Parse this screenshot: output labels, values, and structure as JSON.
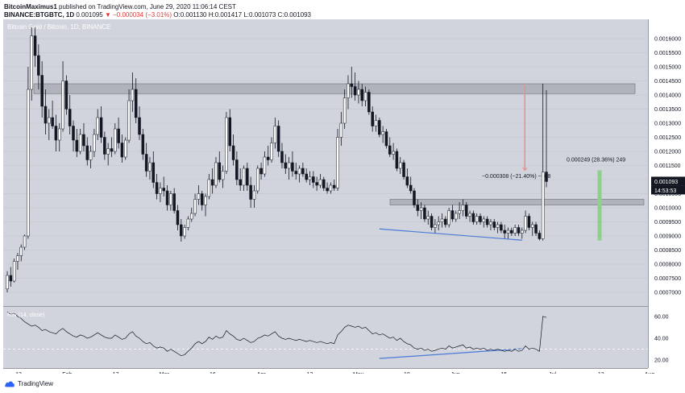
{
  "header": {
    "line1_user": "BitcoinMaximus1",
    "line1_rest": "published on TradingView.com, June 29, 2020 11:06:14 CEST",
    "line2_symbol": "BINANCE:BTGBTC, 1D",
    "line2_price": "0.001095",
    "line2_change": "▼ −0.000034 (−3.01%)",
    "line2_o": "O:0.001130",
    "line2_h": "H:0.001417",
    "line2_l": "L:0.001073",
    "line2_c": "C:0.001093"
  },
  "watermark": "Bitcoin Gold / Bitcoin, 1D, BINANCE",
  "rsi_label": "RSI (14, close)",
  "footer": {
    "brand": "TradingView"
  },
  "price_tag": {
    "value": "0.001093",
    "countdown": "14:53:53"
  },
  "colors": {
    "up": "#ffffff",
    "down": "#131722",
    "zone": "#9598a1",
    "diverge": "#4a7bd6",
    "drop": "#f28a8a",
    "rise": "#8ed18e",
    "bg": "#d1d4dc"
  },
  "chart_data": {
    "type": "candlestick",
    "x_ticks": [
      "13",
      "Feb",
      "17",
      "Mar",
      "16",
      "Apr",
      "13",
      "May",
      "18",
      "Jun",
      "15",
      "Jul",
      "13",
      "Aug"
    ],
    "y_ticks": [
      "0.0016000",
      "0.0015500",
      "0.0015000",
      "0.0014500",
      "0.0014000",
      "0.0013500",
      "0.0013000",
      "0.0012500",
      "0.0012000",
      "0.0011500",
      "0.0011000",
      "0.0010500",
      "0.0010000",
      "0.0009500",
      "0.0009000",
      "0.0008500",
      "0.0008000",
      "0.0007500",
      "0.0007000"
    ],
    "ylim": [
      0.00068,
      0.00164
    ],
    "rsi_ticks": [
      "60.00",
      "40.00",
      "20.00"
    ],
    "rsi_ylim": [
      15,
      65
    ],
    "zones": [
      {
        "name": "resistance",
        "from": 0.001405,
        "to": 0.00144
      },
      {
        "name": "support",
        "from": 0.00101,
        "to": 0.00103
      }
    ],
    "measurements": [
      {
        "label": "−0.000308 (−21.40%) −308",
        "from": 0.00144,
        "to": 0.001132
      },
      {
        "label": "0.000249 (28.36%) 249",
        "from": 0.000884,
        "to": 0.001133
      }
    ],
    "divergence": {
      "price": [
        0.000925,
        0.000885
      ],
      "rsi": [
        21.5,
        30.5
      ]
    },
    "candles": [
      [
        0.000712,
        0.000775,
        0.0007,
        0.00076
      ],
      [
        0.00076,
        0.00079,
        0.00072,
        0.00074
      ],
      [
        0.00074,
        0.00082,
        0.000735,
        0.00081
      ],
      [
        0.00081,
        0.00084,
        0.00078,
        0.00083
      ],
      [
        0.00083,
        0.00087,
        0.00081,
        0.00086
      ],
      [
        0.00086,
        0.000905,
        0.00085,
        0.0009
      ],
      [
        0.0009,
        0.0015,
        0.00089,
        0.00142
      ],
      [
        0.00142,
        0.00164,
        0.00138,
        0.00161
      ],
      [
        0.00161,
        0.00164,
        0.0015,
        0.00154
      ],
      [
        0.00154,
        0.00158,
        0.00142,
        0.00147
      ],
      [
        0.00147,
        0.00152,
        0.00132,
        0.00136
      ],
      [
        0.00136,
        0.00142,
        0.00126,
        0.0013
      ],
      [
        0.0013,
        0.00135,
        0.00124,
        0.00132
      ],
      [
        0.00132,
        0.00138,
        0.00128,
        0.00129
      ],
      [
        0.00129,
        0.00133,
        0.0012,
        0.00124
      ],
      [
        0.00124,
        0.0013,
        0.0012,
        0.00128
      ],
      [
        0.00128,
        0.00152,
        0.00127,
        0.00145
      ],
      [
        0.00145,
        0.00147,
        0.00133,
        0.00135
      ],
      [
        0.00135,
        0.0014,
        0.00126,
        0.00129
      ],
      [
        0.00129,
        0.00131,
        0.0012,
        0.00124
      ],
      [
        0.00124,
        0.00128,
        0.00118,
        0.0012
      ],
      [
        0.0012,
        0.00128,
        0.00119,
        0.00126
      ],
      [
        0.00126,
        0.0013,
        0.0012,
        0.00122
      ],
      [
        0.00122,
        0.00125,
        0.00115,
        0.00117
      ],
      [
        0.00117,
        0.00122,
        0.00114,
        0.0012
      ],
      [
        0.0012,
        0.00128,
        0.00118,
        0.00126
      ],
      [
        0.00126,
        0.00135,
        0.00124,
        0.00132
      ],
      [
        0.00132,
        0.00136,
        0.00123,
        0.00125
      ],
      [
        0.00125,
        0.00127,
        0.00117,
        0.00119
      ],
      [
        0.00119,
        0.00123,
        0.00115,
        0.00121
      ],
      [
        0.00121,
        0.00125,
        0.00118,
        0.0012
      ],
      [
        0.0012,
        0.0013,
        0.00119,
        0.00128
      ],
      [
        0.00128,
        0.00132,
        0.00121,
        0.00123
      ],
      [
        0.00123,
        0.00126,
        0.00116,
        0.00118
      ],
      [
        0.00118,
        0.00125,
        0.00117,
        0.00124
      ],
      [
        0.00124,
        0.00142,
        0.00123,
        0.00138
      ],
      [
        0.00138,
        0.00148,
        0.00134,
        0.00142
      ],
      [
        0.00142,
        0.00146,
        0.0013,
        0.00132
      ],
      [
        0.00132,
        0.00136,
        0.00124,
        0.00126
      ],
      [
        0.00126,
        0.00128,
        0.00117,
        0.00119
      ],
      [
        0.00119,
        0.00123,
        0.00111,
        0.00113
      ],
      [
        0.00113,
        0.00118,
        0.0011,
        0.00116
      ],
      [
        0.00116,
        0.0012,
        0.00107,
        0.00109
      ],
      [
        0.00109,
        0.00112,
        0.00103,
        0.00105
      ],
      [
        0.00105,
        0.00109,
        0.00102,
        0.00107
      ],
      [
        0.00107,
        0.00111,
        0.00104,
        0.00106
      ],
      [
        0.00106,
        0.00108,
        0.00099,
        0.00101
      ],
      [
        0.00101,
        0.00106,
        0.00099,
        0.00105
      ],
      [
        0.00105,
        0.00107,
        0.00098,
        0.00099
      ],
      [
        0.00099,
        0.00101,
        0.00092,
        0.00094
      ],
      [
        0.00094,
        0.00096,
        0.00088,
        0.0009
      ],
      [
        0.0009,
        0.00094,
        0.00089,
        0.00093
      ],
      [
        0.00093,
        0.00097,
        0.00092,
        0.00096
      ],
      [
        0.00096,
        0.001,
        0.00095,
        0.00098
      ],
      [
        0.00098,
        0.00105,
        0.00097,
        0.00103
      ],
      [
        0.00103,
        0.00108,
        0.00101,
        0.00105
      ],
      [
        0.00105,
        0.00106,
        0.00099,
        0.00101
      ],
      [
        0.00101,
        0.00105,
        0.00097,
        0.00104
      ],
      [
        0.00104,
        0.00112,
        0.00103,
        0.0011
      ],
      [
        0.0011,
        0.00114,
        0.00105,
        0.00108
      ],
      [
        0.00108,
        0.00118,
        0.00107,
        0.00116
      ],
      [
        0.00116,
        0.0012,
        0.00109,
        0.0011
      ],
      [
        0.0011,
        0.00115,
        0.00107,
        0.00113
      ],
      [
        0.00113,
        0.00134,
        0.00112,
        0.00132
      ],
      [
        0.00132,
        0.00135,
        0.0012,
        0.00122
      ],
      [
        0.00122,
        0.00126,
        0.00115,
        0.00117
      ],
      [
        0.00117,
        0.0012,
        0.00108,
        0.0011
      ],
      [
        0.0011,
        0.00114,
        0.00106,
        0.00108
      ],
      [
        0.00108,
        0.00115,
        0.00106,
        0.00114
      ],
      [
        0.00114,
        0.00116,
        0.00106,
        0.00108
      ],
      [
        0.00108,
        0.00111,
        0.001,
        0.00103
      ],
      [
        0.00103,
        0.00108,
        0.001,
        0.00106
      ],
      [
        0.00106,
        0.00115,
        0.00105,
        0.00114
      ],
      [
        0.00114,
        0.00116,
        0.0011,
        0.00112
      ],
      [
        0.00112,
        0.0012,
        0.00111,
        0.00118
      ],
      [
        0.00118,
        0.00122,
        0.00115,
        0.00117
      ],
      [
        0.00117,
        0.00125,
        0.00116,
        0.00123
      ],
      [
        0.00123,
        0.00132,
        0.00121,
        0.00129
      ],
      [
        0.00129,
        0.00131,
        0.00118,
        0.0012
      ],
      [
        0.0012,
        0.00123,
        0.00114,
        0.00116
      ],
      [
        0.00116,
        0.00119,
        0.00112,
        0.00114
      ],
      [
        0.00114,
        0.00118,
        0.0011,
        0.00116
      ],
      [
        0.00116,
        0.0012,
        0.00111,
        0.00113
      ],
      [
        0.00113,
        0.00116,
        0.0011,
        0.00112
      ],
      [
        0.00112,
        0.00115,
        0.00109,
        0.00114
      ],
      [
        0.00114,
        0.00116,
        0.00111,
        0.00112
      ],
      [
        0.00112,
        0.00114,
        0.00109,
        0.0011
      ],
      [
        0.0011,
        0.00113,
        0.00108,
        0.00111
      ],
      [
        0.00111,
        0.00113,
        0.00107,
        0.00109
      ],
      [
        0.00109,
        0.00111,
        0.00106,
        0.00108
      ],
      [
        0.00108,
        0.00112,
        0.00107,
        0.0011
      ],
      [
        0.0011,
        0.00111,
        0.00106,
        0.00107
      ],
      [
        0.00107,
        0.00109,
        0.00105,
        0.00106
      ],
      [
        0.00106,
        0.00109,
        0.00105,
        0.00108
      ],
      [
        0.00108,
        0.0011,
        0.00106,
        0.00107
      ],
      [
        0.00107,
        0.00128,
        0.00106,
        0.00125
      ],
      [
        0.00125,
        0.00134,
        0.00122,
        0.0013
      ],
      [
        0.0013,
        0.00142,
        0.00128,
        0.00139
      ],
      [
        0.00139,
        0.00147,
        0.00135,
        0.00144
      ],
      [
        0.00144,
        0.0015,
        0.00139,
        0.00143
      ],
      [
        0.00143,
        0.00148,
        0.00138,
        0.0014
      ],
      [
        0.0014,
        0.00145,
        0.00137,
        0.00142
      ],
      [
        0.00142,
        0.00144,
        0.00136,
        0.00138
      ],
      [
        0.00138,
        0.00143,
        0.00136,
        0.00141
      ],
      [
        0.00141,
        0.00142,
        0.00133,
        0.00134
      ],
      [
        0.00134,
        0.00136,
        0.00127,
        0.00129
      ],
      [
        0.00129,
        0.00133,
        0.00127,
        0.00131
      ],
      [
        0.00131,
        0.00132,
        0.00125,
        0.00126
      ],
      [
        0.00126,
        0.00129,
        0.00123,
        0.00127
      ],
      [
        0.00127,
        0.00128,
        0.00121,
        0.00122
      ],
      [
        0.00122,
        0.00125,
        0.00118,
        0.00119
      ],
      [
        0.00119,
        0.00123,
        0.00117,
        0.0012
      ],
      [
        0.0012,
        0.00121,
        0.00113,
        0.00114
      ],
      [
        0.00114,
        0.00118,
        0.00112,
        0.00116
      ],
      [
        0.00116,
        0.00117,
        0.0011,
        0.00111
      ],
      [
        0.00111,
        0.00114,
        0.00107,
        0.00108
      ],
      [
        0.00108,
        0.00111,
        0.00105,
        0.00106
      ],
      [
        0.00106,
        0.00107,
        0.001,
        0.00101
      ],
      [
        0.00101,
        0.00103,
        0.00097,
        0.00099
      ],
      [
        0.00099,
        0.00102,
        0.00096,
        0.001
      ],
      [
        0.001,
        0.00101,
        0.00095,
        0.00096
      ],
      [
        0.00096,
        0.00099,
        0.00094,
        0.00097
      ],
      [
        0.00097,
        0.00098,
        0.00092,
        0.00093
      ],
      [
        0.00093,
        0.00096,
        0.00091,
        0.00094
      ],
      [
        0.00094,
        0.00097,
        0.00092,
        0.00095
      ],
      [
        0.00095,
        0.00098,
        0.00093,
        0.00096
      ],
      [
        0.00096,
        0.00097,
        0.00093,
        0.00094
      ],
      [
        0.00094,
        0.001,
        0.00093,
        0.00099
      ],
      [
        0.00099,
        0.00101,
        0.00095,
        0.00096
      ],
      [
        0.00096,
        0.00099,
        0.00095,
        0.00098
      ],
      [
        0.00098,
        0.00102,
        0.00096,
        0.00099
      ],
      [
        0.00099,
        0.00103,
        0.00097,
        0.00101
      ],
      [
        0.00101,
        0.00102,
        0.00096,
        0.00097
      ],
      [
        0.00097,
        0.00099,
        0.00095,
        0.00098
      ],
      [
        0.00098,
        0.00099,
        0.00094,
        0.00095
      ],
      [
        0.00095,
        0.00098,
        0.00094,
        0.00097
      ],
      [
        0.00097,
        0.00098,
        0.00094,
        0.00095
      ],
      [
        0.00095,
        0.00097,
        0.00093,
        0.00096
      ],
      [
        0.00096,
        0.00097,
        0.00093,
        0.00094
      ],
      [
        0.00094,
        0.00096,
        0.00092,
        0.00095
      ],
      [
        0.00095,
        0.00096,
        0.00092,
        0.00093
      ],
      [
        0.00093,
        0.00095,
        0.00091,
        0.00094
      ],
      [
        0.00094,
        0.00095,
        0.00091,
        0.00092
      ],
      [
        0.00092,
        0.00094,
        0.00089,
        0.00091
      ],
      [
        0.00091,
        0.00093,
        0.00089,
        0.00092
      ],
      [
        0.00092,
        0.00093,
        0.0009,
        0.00091
      ],
      [
        0.00091,
        0.00094,
        0.0009,
        0.00093
      ],
      [
        0.00093,
        0.00094,
        0.0009,
        0.00091
      ],
      [
        0.00091,
        0.00093,
        0.00089,
        0.00092
      ],
      [
        0.00092,
        0.00099,
        0.00091,
        0.00097
      ],
      [
        0.00097,
        0.00098,
        0.00092,
        0.00093
      ],
      [
        0.00093,
        0.00095,
        0.0009,
        0.00094
      ],
      [
        0.00094,
        0.00095,
        0.0009,
        0.00091
      ],
      [
        0.00091,
        0.00092,
        0.000884,
        0.00089
      ],
      [
        0.00089,
        0.00144,
        0.000884,
        0.001127
      ],
      [
        0.001127,
        0.001417,
        0.001073,
        0.001093
      ]
    ],
    "rsi": [
      64,
      62,
      63,
      60,
      58,
      55,
      53,
      51,
      52,
      50,
      47,
      48,
      46,
      45,
      44,
      47,
      49,
      46,
      44,
      42,
      41,
      43,
      42,
      40,
      41,
      43,
      45,
      43,
      41,
      40,
      40,
      43,
      41,
      39,
      40,
      44,
      46,
      42,
      40,
      37,
      35,
      36,
      33,
      31,
      32,
      31,
      28,
      30,
      28,
      26,
      24,
      25,
      28,
      31,
      35,
      37,
      35,
      37,
      41,
      39,
      42,
      40,
      41,
      47,
      44,
      42,
      39,
      38,
      40,
      38,
      36,
      37,
      40,
      41,
      43,
      42,
      44,
      46,
      42,
      40,
      39,
      40,
      39,
      38,
      39,
      38,
      37,
      38,
      37,
      36,
      37,
      36,
      35,
      36,
      35,
      43,
      46,
      50,
      52,
      51,
      50,
      51,
      49,
      50,
      47,
      44,
      45,
      43,
      44,
      42,
      40,
      41,
      38,
      40,
      37,
      35,
      34,
      31,
      30,
      31,
      29,
      30,
      28,
      29,
      30,
      31,
      30,
      33,
      31,
      32,
      33,
      34,
      31,
      32,
      30,
      31,
      30,
      31,
      29,
      30,
      29,
      30,
      29,
      28,
      29,
      28,
      30,
      28,
      29,
      33,
      30,
      31,
      30,
      28,
      60,
      59
    ]
  }
}
